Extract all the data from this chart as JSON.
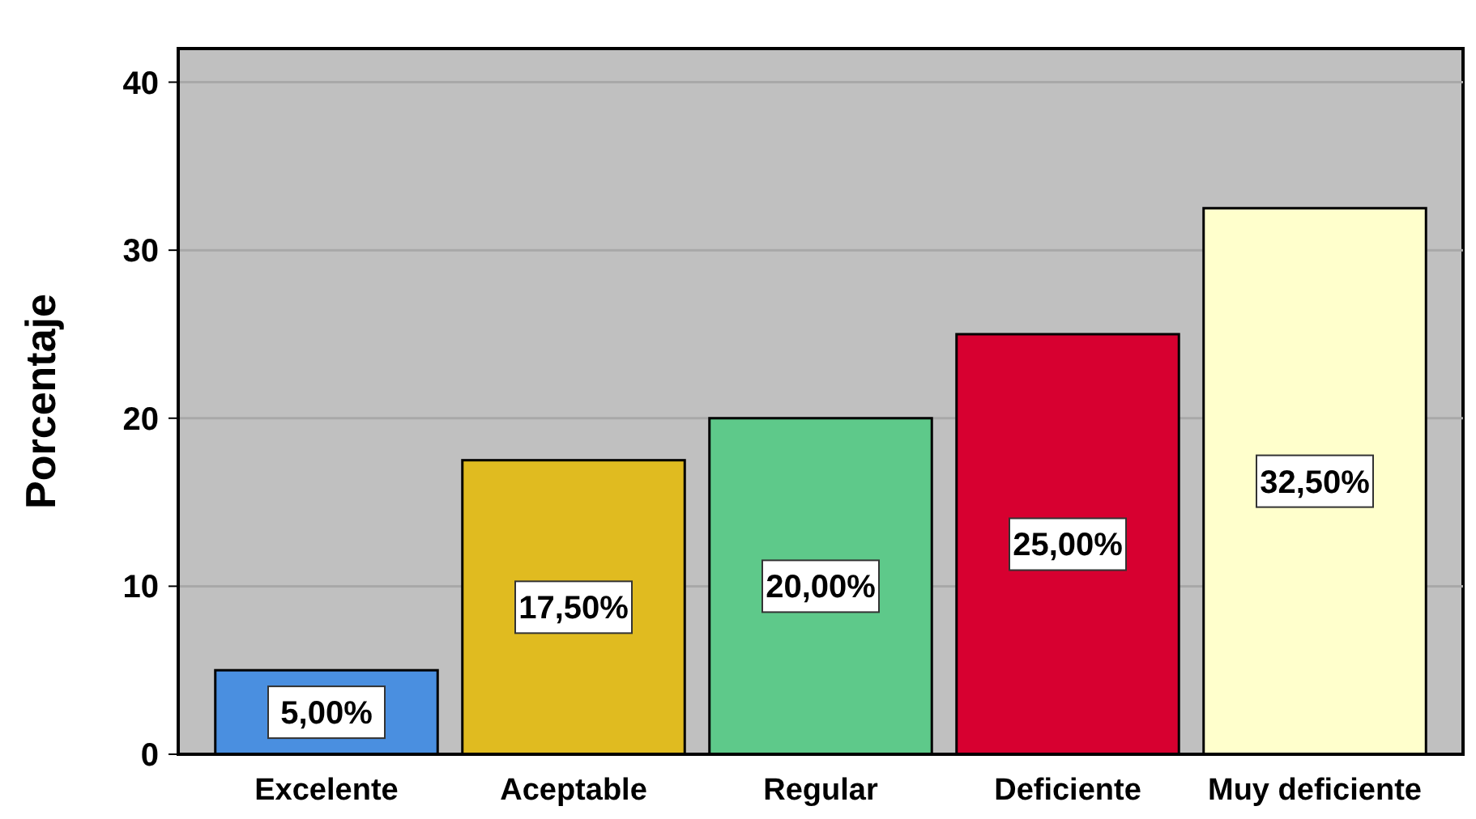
{
  "chart_data": {
    "type": "bar",
    "ylabel": "Porcentaje",
    "categories": [
      "Excelente",
      "Aceptable",
      "Regular",
      "Deficiente",
      "Muy deficiente"
    ],
    "values": [
      5,
      17.5,
      20,
      25,
      32.5
    ],
    "colors": [
      "#4a8fe0",
      "#e0bb20",
      "#5ec98a",
      "#d70030",
      "#ffffcc"
    ],
    "value_labels": [
      "5,00%",
      "17,50%",
      "20,00%",
      "25,00%",
      "32,50%"
    ],
    "ylim": [
      0,
      42
    ],
    "yticks": [
      0,
      10,
      20,
      30,
      40
    ],
    "grid": "y"
  }
}
